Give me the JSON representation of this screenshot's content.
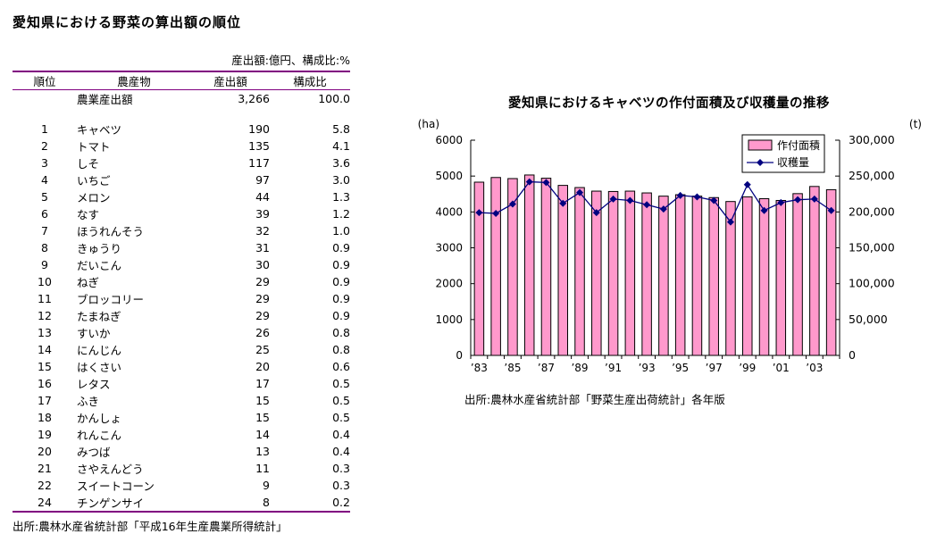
{
  "table": {
    "title": "愛知県における野菜の算出額の順位",
    "unit_note": "産出額:億円、構成比:%",
    "columns": [
      "順位",
      "農産物",
      "産出額",
      "構成比"
    ],
    "total_row": {
      "rank": "",
      "name": "農業産出額",
      "value": "3,266",
      "share": "100.0"
    },
    "rows": [
      {
        "rank": "1",
        "name": "キャベツ",
        "value": "190",
        "share": "5.8"
      },
      {
        "rank": "2",
        "name": "トマト",
        "value": "135",
        "share": "4.1"
      },
      {
        "rank": "3",
        "name": "しそ",
        "value": "117",
        "share": "3.6"
      },
      {
        "rank": "4",
        "name": "いちご",
        "value": "97",
        "share": "3.0"
      },
      {
        "rank": "5",
        "name": "メロン",
        "value": "44",
        "share": "1.3"
      },
      {
        "rank": "6",
        "name": "なす",
        "value": "39",
        "share": "1.2"
      },
      {
        "rank": "7",
        "name": "ほうれんそう",
        "value": "32",
        "share": "1.0"
      },
      {
        "rank": "8",
        "name": "きゅうり",
        "value": "31",
        "share": "0.9"
      },
      {
        "rank": "9",
        "name": "だいこん",
        "value": "30",
        "share": "0.9"
      },
      {
        "rank": "10",
        "name": "ねぎ",
        "value": "29",
        "share": "0.9"
      },
      {
        "rank": "11",
        "name": "ブロッコリー",
        "value": "29",
        "share": "0.9"
      },
      {
        "rank": "12",
        "name": "たまねぎ",
        "value": "29",
        "share": "0.9"
      },
      {
        "rank": "13",
        "name": "すいか",
        "value": "26",
        "share": "0.8"
      },
      {
        "rank": "14",
        "name": "にんじん",
        "value": "25",
        "share": "0.8"
      },
      {
        "rank": "15",
        "name": "はくさい",
        "value": "20",
        "share": "0.6"
      },
      {
        "rank": "16",
        "name": "レタス",
        "value": "17",
        "share": "0.5"
      },
      {
        "rank": "17",
        "name": "ふき",
        "value": "15",
        "share": "0.5"
      },
      {
        "rank": "18",
        "name": "かんしょ",
        "value": "15",
        "share": "0.5"
      },
      {
        "rank": "19",
        "name": "れんこん",
        "value": "14",
        "share": "0.4"
      },
      {
        "rank": "20",
        "name": "みつば",
        "value": "13",
        "share": "0.4"
      },
      {
        "rank": "21",
        "name": "さやえんどう",
        "value": "11",
        "share": "0.3"
      },
      {
        "rank": "22",
        "name": "スイートコーン",
        "value": "9",
        "share": "0.3"
      },
      {
        "rank": "24",
        "name": "チンゲンサイ",
        "value": "8",
        "share": "0.2"
      }
    ],
    "source": "出所:農林水産省統計部「平成16年生産農業所得統計」",
    "rule_color": "#800080"
  },
  "chart_data": {
    "type": "bar",
    "combo": "bar+line",
    "title": "愛知県におけるキャベツの作付面積及び収穫量の推移",
    "categories": [
      "’83",
      "’84",
      "’85",
      "’86",
      "’87",
      "’88",
      "’89",
      "’90",
      "’91",
      "’92",
      "’93",
      "’94",
      "’95",
      "’96",
      "’97",
      "’98",
      "’99",
      "’00",
      "’01",
      "’02",
      "’03",
      "’04"
    ],
    "x_label_step": 2,
    "series": [
      {
        "name": "作付面積",
        "type": "bar",
        "axis": "left",
        "fill": "#FF99CC",
        "stroke": "#000000",
        "values": [
          4830,
          4960,
          4930,
          5030,
          4940,
          4740,
          4680,
          4580,
          4570,
          4580,
          4530,
          4440,
          4480,
          4440,
          4400,
          4290,
          4420,
          4370,
          4320,
          4510,
          4710,
          4620
        ]
      },
      {
        "name": "収穫量",
        "type": "line",
        "axis": "right",
        "color": "#000080",
        "marker": "diamond",
        "values": [
          199000,
          198000,
          211000,
          242000,
          241000,
          212000,
          227000,
          199000,
          218000,
          216000,
          210000,
          204000,
          223000,
          221000,
          216000,
          186000,
          238000,
          202000,
          213000,
          217000,
          218000,
          202000
        ]
      }
    ],
    "left_axis": {
      "unit": "(ha)",
      "min": 0,
      "max": 6000,
      "step": 1000
    },
    "right_axis": {
      "unit": "(t)",
      "min": 0,
      "max": 300000,
      "step": 50000
    },
    "grid": false,
    "legend_position": "top-right-inside",
    "source": "出所:農林水産省統計部「野菜生産出荷統計」各年版"
  }
}
